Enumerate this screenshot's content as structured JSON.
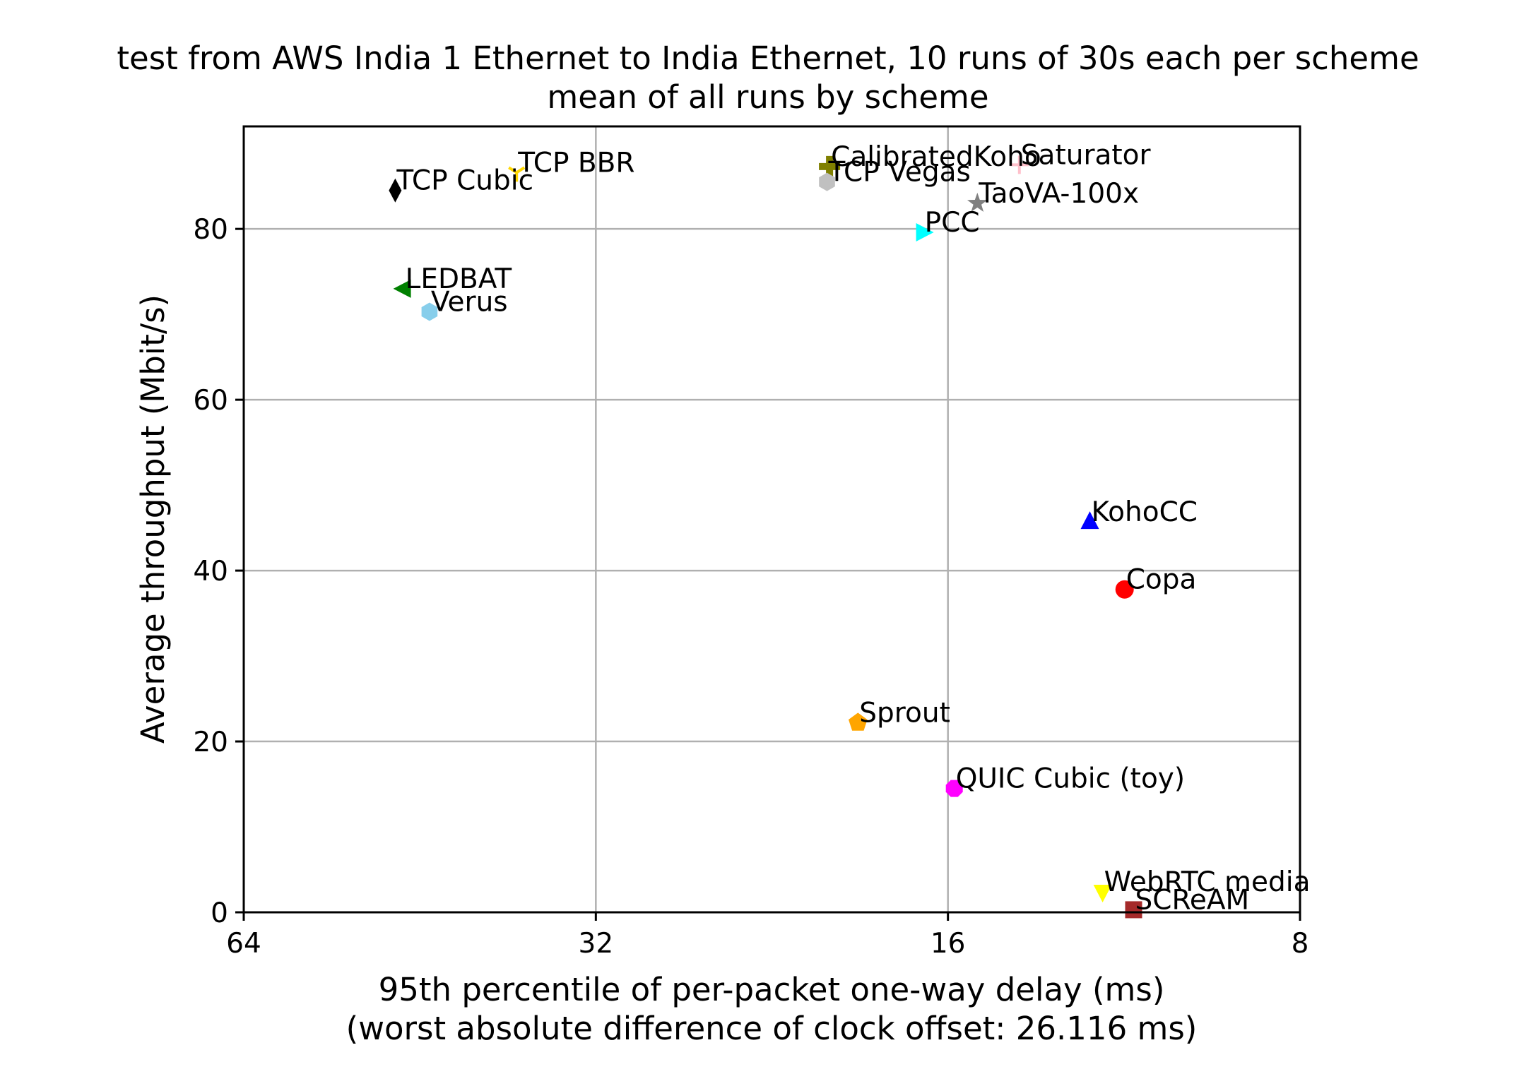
{
  "chart_data": {
    "type": "scatter",
    "title": "test from AWS India 1 Ethernet to India Ethernet, 10 runs of 30s each per scheme",
    "subtitle": "mean of all runs by scheme",
    "xlabel": "95th percentile of per-packet one-way delay (ms)",
    "xlabel2": "(worst absolute difference of clock offset: 26.116 ms)",
    "ylabel": "Average throughput (Mbit/s)",
    "x_scale": "log2",
    "x_inverted": true,
    "xlim": [
      64,
      8
    ],
    "ylim": [
      0,
      92
    ],
    "x_ticks": [
      64,
      32,
      16,
      8
    ],
    "x_tick_labels": [
      "64",
      "32",
      "16",
      "8"
    ],
    "y_ticks": [
      0,
      20,
      40,
      60,
      80
    ],
    "y_tick_labels": [
      "0",
      "20",
      "40",
      "60",
      "80"
    ],
    "grid": true,
    "legend": "none",
    "points": [
      {
        "label": "TCP BBR",
        "x": 37.4,
        "y": 86.6,
        "color": "#ffd700",
        "marker": "tri_down"
      },
      {
        "label": "TCP Cubic",
        "x": 47.5,
        "y": 84.5,
        "color": "#000000",
        "marker": "thin_diamond"
      },
      {
        "label": "LEDBAT",
        "x": 46.7,
        "y": 73.0,
        "color": "#008000",
        "marker": "triangle_left"
      },
      {
        "label": "Verus",
        "x": 44.4,
        "y": 70.3,
        "color": "#87ceeb",
        "marker": "hexagon"
      },
      {
        "label": "CalibratedKoho",
        "x": 20.2,
        "y": 87.3,
        "color": "#808000",
        "marker": "plus_filled"
      },
      {
        "label": "TCP Vegas",
        "x": 20.3,
        "y": 85.5,
        "color": "#c0c0c0",
        "marker": "hexagon"
      },
      {
        "label": "Saturator",
        "x": 13.9,
        "y": 87.5,
        "color": "#ffc0cb",
        "marker": "plus"
      },
      {
        "label": "TaoVA-100x",
        "x": 15.1,
        "y": 83.0,
        "color": "#808080",
        "marker": "star"
      },
      {
        "label": "PCC",
        "x": 16.8,
        "y": 79.6,
        "color": "#00ffff",
        "marker": "triangle_right"
      },
      {
        "label": "KohoCC",
        "x": 12.1,
        "y": 45.7,
        "color": "#0000ff",
        "marker": "triangle_up"
      },
      {
        "label": "Copa",
        "x": 11.3,
        "y": 37.8,
        "color": "#ff0000",
        "marker": "circle"
      },
      {
        "label": "Sprout",
        "x": 19.1,
        "y": 22.2,
        "color": "#ffa500",
        "marker": "pentagon"
      },
      {
        "label": "QUIC Cubic (toy)",
        "x": 15.8,
        "y": 14.5,
        "color": "#ff00ff",
        "marker": "octagon"
      },
      {
        "label": "WebRTC media",
        "x": 11.8,
        "y": 2.4,
        "color": "#ffff00",
        "marker": "triangle_down"
      },
      {
        "label": "SCReAM",
        "x": 11.1,
        "y": 0.3,
        "color": "#a52a2a",
        "marker": "square"
      }
    ]
  }
}
